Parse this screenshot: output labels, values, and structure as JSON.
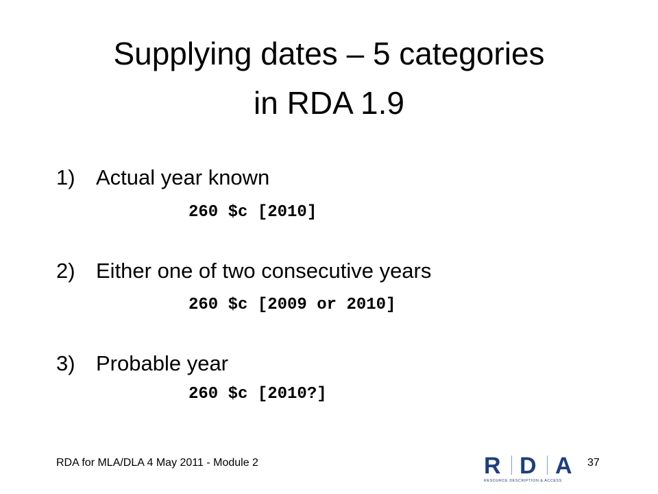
{
  "title": {
    "lines": [
      "Supplying dates – 5 categories",
      "in RDA 1.9"
    ]
  },
  "items": [
    {
      "number": "1)",
      "text": "Actual year known",
      "example": "260 $c [2010]"
    },
    {
      "number": "2)",
      "text": "Either one of two consecutive years",
      "example": "260 $c [2009 or 2010]"
    },
    {
      "number": "3)",
      "text": "Probable year",
      "example": "260 $c [2010?]"
    }
  ],
  "footer": {
    "text": "RDA for MLA/DLA 4 May 2011 - Module 2",
    "page": "37"
  },
  "logo": {
    "letters": [
      "R",
      "D",
      "A"
    ],
    "tagline": "RESOURCE DESCRIPTION & ACCESS"
  }
}
